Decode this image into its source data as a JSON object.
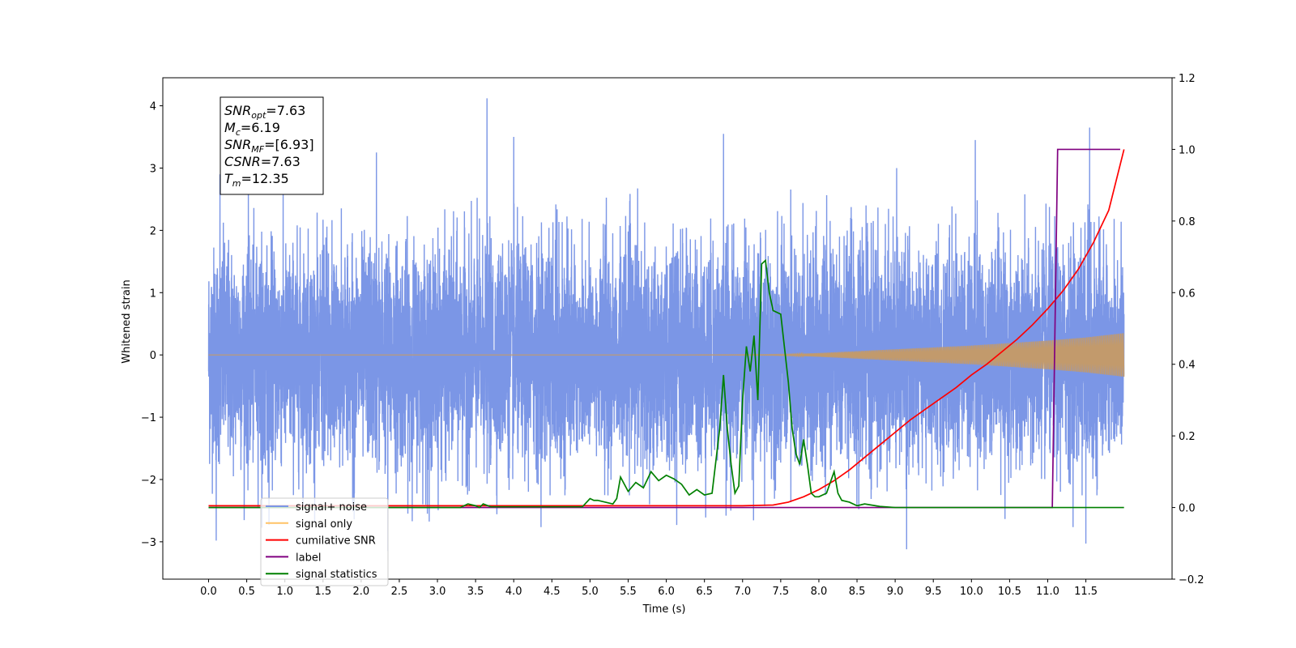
{
  "chart_data": {
    "type": "line",
    "xlabel": "Time (s)",
    "ylabel": "Whitened strain",
    "xlim": [
      -0.6,
      12.63
    ],
    "ylim": [
      -3.6,
      4.45
    ],
    "y2lim": [
      -0.2,
      1.2
    ],
    "x_ticks": [
      "0.0",
      "0.5",
      "1.0",
      "1.5",
      "2.0",
      "2.5",
      "3.0",
      "3.5",
      "4.0",
      "4.5",
      "5.0",
      "5.5",
      "6.0",
      "6.5",
      "7.0",
      "7.5",
      "8.0",
      "8.5",
      "9.0",
      "9.5",
      "10.0",
      "10.5",
      "11.0",
      "11.5"
    ],
    "y_ticks": [
      "−3",
      "−2",
      "−1",
      "0",
      "1",
      "2",
      "3",
      "4"
    ],
    "y2_ticks": [
      "−0.2",
      "0.0",
      "0.2",
      "0.4",
      "0.6",
      "0.8",
      "1.0",
      "1.2"
    ],
    "grid": false,
    "legend_position": "lower-left",
    "annotation": {
      "lines": [
        {
          "main": "SNR",
          "sub": "opt",
          "rest": "=7.63"
        },
        {
          "main": "M",
          "sub": "c",
          "rest": "=6.19"
        },
        {
          "main": "SNR",
          "sub": "MF",
          "rest": "=[6.93]"
        },
        {
          "main": "CSNR",
          "sub": "",
          "rest": "=7.63"
        },
        {
          "main": "T",
          "sub": "m",
          "rest": "=12.35"
        }
      ]
    },
    "legend": [
      {
        "label": "signal+ noise",
        "color": "#7b96e6"
      },
      {
        "label": "signal only",
        "color": "#ffc266"
      },
      {
        "label": "cumilative SNR",
        "color": "#ff0000"
      },
      {
        "label": "label",
        "color": "#800080"
      },
      {
        "label": "signal statistics",
        "color": "#008000"
      }
    ],
    "series": [
      {
        "name": "signal+ noise",
        "axis": "left",
        "color": "#7b96e6",
        "kind": "noise",
        "x_range": [
          0.0,
          12.0
        ],
        "std": 1.0,
        "peak_examples": [
          [
            0.15,
            2.9
          ],
          [
            2.2,
            3.25
          ],
          [
            3.65,
            4.12
          ],
          [
            4.0,
            3.5
          ],
          [
            6.75,
            3.55
          ],
          [
            9.02,
            3.0
          ],
          [
            10.05,
            3.45
          ],
          [
            11.55,
            3.65
          ],
          [
            2.35,
            -3.15
          ],
          [
            0.1,
            -2.98
          ],
          [
            9.15,
            -3.12
          ],
          [
            11.5,
            -3.03
          ]
        ]
      },
      {
        "name": "signal only",
        "axis": "left",
        "color": "#ffc266",
        "kind": "chirp_envelope",
        "x": [
          0.0,
          6.0,
          7.3,
          7.6,
          8.0,
          8.5,
          9.0,
          9.5,
          10.0,
          10.5,
          11.0,
          11.5,
          12.0
        ],
        "amplitude": [
          0.0,
          0.0,
          0.005,
          0.01,
          0.03,
          0.06,
          0.09,
          0.12,
          0.15,
          0.19,
          0.23,
          0.28,
          0.35
        ]
      },
      {
        "name": "cumilative SNR",
        "axis": "right",
        "color": "#ff0000",
        "x": [
          0.0,
          7.0,
          7.4,
          7.6,
          7.8,
          8.0,
          8.2,
          8.4,
          8.6,
          8.8,
          9.0,
          9.2,
          9.4,
          9.6,
          9.8,
          10.0,
          10.2,
          10.4,
          10.6,
          10.8,
          11.0,
          11.2,
          11.4,
          11.6,
          11.8,
          12.0
        ],
        "values": [
          0.005,
          0.005,
          0.007,
          0.015,
          0.03,
          0.05,
          0.075,
          0.105,
          0.14,
          0.175,
          0.21,
          0.245,
          0.275,
          0.305,
          0.335,
          0.37,
          0.4,
          0.435,
          0.47,
          0.51,
          0.555,
          0.605,
          0.665,
          0.74,
          0.83,
          1.0
        ]
      },
      {
        "name": "label",
        "axis": "right",
        "color": "#800080",
        "x": [
          0.0,
          11.06,
          11.13,
          11.95
        ],
        "values": [
          0.0,
          0.0,
          1.0,
          1.0
        ]
      },
      {
        "name": "signal statistics",
        "axis": "right",
        "color": "#008000",
        "x": [
          0.0,
          3.3,
          3.4,
          3.5,
          3.55,
          3.6,
          3.7,
          4.9,
          5.0,
          5.05,
          5.1,
          5.2,
          5.3,
          5.35,
          5.4,
          5.5,
          5.6,
          5.7,
          5.8,
          5.9,
          6.0,
          6.1,
          6.2,
          6.3,
          6.4,
          6.5,
          6.6,
          6.7,
          6.75,
          6.8,
          6.85,
          6.9,
          6.95,
          7.0,
          7.05,
          7.1,
          7.15,
          7.2,
          7.25,
          7.3,
          7.35,
          7.4,
          7.5,
          7.6,
          7.65,
          7.7,
          7.75,
          7.8,
          7.85,
          7.9,
          7.95,
          8.0,
          8.1,
          8.2,
          8.25,
          8.3,
          8.4,
          8.5,
          8.6,
          8.8,
          9.0,
          9.5,
          12.0
        ],
        "values": [
          0.0,
          0.0,
          0.01,
          0.005,
          0.0,
          0.01,
          0.002,
          0.002,
          0.025,
          0.02,
          0.02,
          0.015,
          0.01,
          0.025,
          0.085,
          0.045,
          0.07,
          0.055,
          0.1,
          0.075,
          0.09,
          0.08,
          0.065,
          0.035,
          0.05,
          0.035,
          0.04,
          0.22,
          0.37,
          0.22,
          0.12,
          0.04,
          0.06,
          0.3,
          0.45,
          0.38,
          0.48,
          0.3,
          0.68,
          0.69,
          0.6,
          0.55,
          0.54,
          0.35,
          0.22,
          0.15,
          0.12,
          0.19,
          0.12,
          0.04,
          0.03,
          0.03,
          0.04,
          0.1,
          0.04,
          0.02,
          0.015,
          0.005,
          0.01,
          0.003,
          0.0,
          0.0,
          0.0
        ]
      }
    ]
  }
}
